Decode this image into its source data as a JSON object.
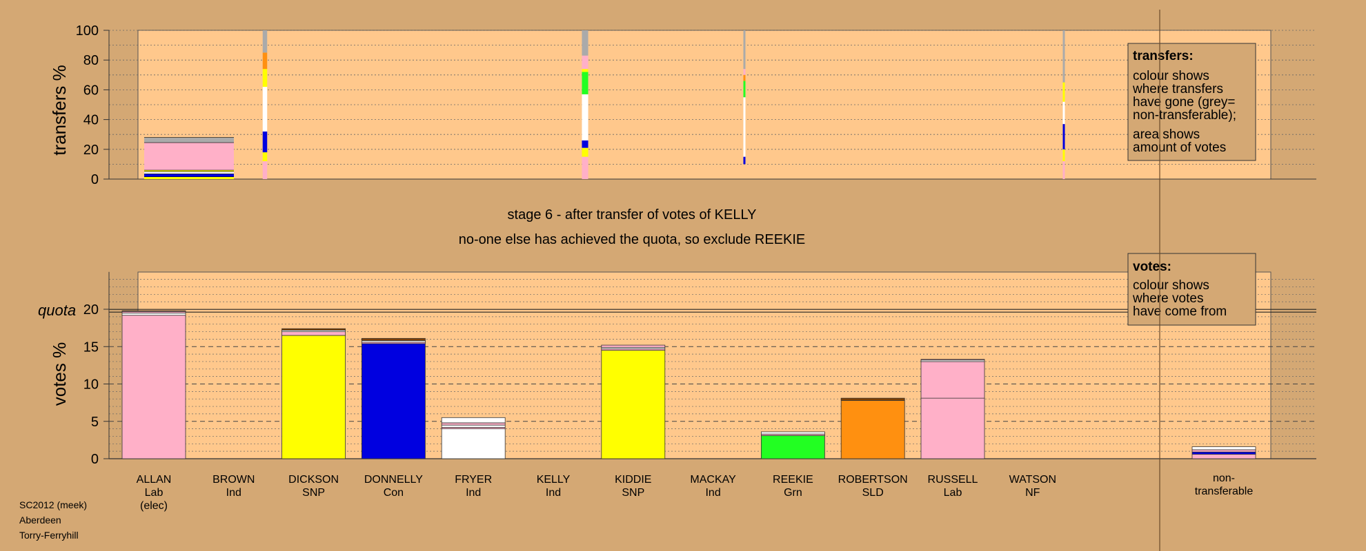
{
  "colors": {
    "background": "#d4a874",
    "plot_background": "#ffc88c",
    "Lab": "#ffb0c8",
    "SNP": "#ffff00",
    "Con": "#0000e0",
    "Ind": "#ffffff",
    "Grn": "#22ff22",
    "SLD": "#ff9010",
    "NF": "#804000",
    "non-transferable": "#aaaaaa"
  },
  "title_lines": [
    "stage 6 - after transfer of votes of KELLY",
    "no-one else has achieved the quota, so exclude REEKIE"
  ],
  "footer": [
    "SC2012 (meek)",
    "Aberdeen",
    "Torry-Ferryhill"
  ],
  "quota_label": "quota",
  "legend_transfers": {
    "heading": "transfers:",
    "para1": [
      "colour shows",
      "where transfers",
      "have gone (grey=",
      "non-transferable);"
    ],
    "para2": [
      "area shows",
      "amount of votes"
    ]
  },
  "legend_votes": {
    "heading": "votes:",
    "para1": [
      "colour shows",
      "where votes",
      "have come from"
    ]
  },
  "chart_data": [
    {
      "type": "bar",
      "name": "transfers",
      "ylabel": "transfers %",
      "ylim": [
        0,
        100
      ],
      "yticks": [
        0,
        20,
        40,
        60,
        80,
        100
      ],
      "grid": "dotted every 10",
      "columns": [
        {
          "candidate": "ALLAN",
          "width_share": 1.0,
          "segments": [
            {
              "party": "SNP",
              "from": 0,
              "to": 1.5
            },
            {
              "party": "Con",
              "from": 1.5,
              "to": 3.5
            },
            {
              "party": "Ind",
              "from": 3.5,
              "to": 5
            },
            {
              "party": "SNP",
              "from": 5,
              "to": 6
            },
            {
              "party": "Lab",
              "from": 6,
              "to": 24.5
            },
            {
              "party": "non-transferable",
              "from": 24.5,
              "to": 28
            }
          ]
        },
        {
          "candidate": "BROWN",
          "width_share": 0.05,
          "segments": [
            {
              "party": "Lab",
              "from": 0,
              "to": 12
            },
            {
              "party": "SNP",
              "from": 12,
              "to": 18
            },
            {
              "party": "Con",
              "from": 18,
              "to": 32
            },
            {
              "party": "Ind",
              "from": 32,
              "to": 62
            },
            {
              "party": "SNP",
              "from": 62,
              "to": 74
            },
            {
              "party": "SLD",
              "from": 74,
              "to": 85
            },
            {
              "party": "non-transferable",
              "from": 85,
              "to": 100
            }
          ]
        },
        {
          "candidate": "KELLY",
          "width_share": 0.07,
          "segments": [
            {
              "party": "Lab",
              "from": 0,
              "to": 15
            },
            {
              "party": "SNP",
              "from": 15,
              "to": 21
            },
            {
              "party": "Con",
              "from": 21,
              "to": 26
            },
            {
              "party": "Ind",
              "from": 26,
              "to": 57
            },
            {
              "party": "Grn",
              "from": 57,
              "to": 72
            },
            {
              "party": "SNP",
              "from": 72,
              "to": 74
            },
            {
              "party": "Lab",
              "from": 74,
              "to": 83
            },
            {
              "party": "non-transferable",
              "from": 83,
              "to": 100
            }
          ]
        },
        {
          "candidate": "MACKAY",
          "width_share": 0.02,
          "segments": [
            {
              "party": "Con",
              "from": 10,
              "to": 15
            },
            {
              "party": "Ind",
              "from": 15,
              "to": 55
            },
            {
              "party": "Grn",
              "from": 55,
              "to": 66
            },
            {
              "party": "SLD",
              "from": 66,
              "to": 70
            },
            {
              "party": "Lab",
              "from": 70,
              "to": 74
            },
            {
              "party": "non-transferable",
              "from": 74,
              "to": 100
            }
          ]
        },
        {
          "candidate": "WATSON",
          "width_share": 0.02,
          "segments": [
            {
              "party": "Lab",
              "from": 0,
              "to": 12
            },
            {
              "party": "SNP",
              "from": 12,
              "to": 20
            },
            {
              "party": "Con",
              "from": 20,
              "to": 37
            },
            {
              "party": "Ind",
              "from": 37,
              "to": 52
            },
            {
              "party": "SNP",
              "from": 52,
              "to": 65
            },
            {
              "party": "non-transferable",
              "from": 65,
              "to": 100
            }
          ]
        }
      ]
    },
    {
      "type": "bar",
      "name": "votes",
      "ylabel": "votes %",
      "ylim": [
        0,
        25
      ],
      "yticks": [
        0,
        5,
        10,
        15,
        20
      ],
      "quota": 19.8,
      "grid": "dashed every 5, dotted every 1",
      "categories": [
        {
          "name": "ALLAN",
          "party": "Lab",
          "note": "(elec)"
        },
        {
          "name": "BROWN",
          "party": "Ind",
          "note": ""
        },
        {
          "name": "DICKSON",
          "party": "SNP",
          "note": ""
        },
        {
          "name": "DONNELLY",
          "party": "Con",
          "note": ""
        },
        {
          "name": "FRYER",
          "party": "Ind",
          "note": ""
        },
        {
          "name": "KELLY",
          "party": "Ind",
          "note": ""
        },
        {
          "name": "KIDDIE",
          "party": "SNP",
          "note": ""
        },
        {
          "name": "MACKAY",
          "party": "Ind",
          "note": ""
        },
        {
          "name": "REEKIE",
          "party": "Grn",
          "note": ""
        },
        {
          "name": "ROBERTSON",
          "party": "SLD",
          "note": ""
        },
        {
          "name": "RUSSELL",
          "party": "Lab",
          "note": ""
        },
        {
          "name": "WATSON",
          "party": "NF",
          "note": ""
        }
      ],
      "bars": [
        {
          "candidate": "ALLAN",
          "segments": [
            {
              "party": "Lab",
              "from": 0,
              "to": 19.2
            },
            {
              "party": "Ind",
              "from": 19.2,
              "to": 19.5
            },
            {
              "party": "Lab",
              "from": 19.5,
              "to": 19.7
            },
            {
              "party": "NF",
              "from": 19.7,
              "to": 19.8
            }
          ]
        },
        {
          "candidate": "BROWN",
          "segments": []
        },
        {
          "candidate": "DICKSON",
          "segments": [
            {
              "party": "SNP",
              "from": 0,
              "to": 16.5
            },
            {
              "party": "Lab",
              "from": 16.5,
              "to": 17.0
            },
            {
              "party": "Ind",
              "from": 17.0,
              "to": 17.2
            },
            {
              "party": "NF",
              "from": 17.2,
              "to": 17.4
            }
          ]
        },
        {
          "candidate": "DONNELLY",
          "segments": [
            {
              "party": "Con",
              "from": 0,
              "to": 15.4
            },
            {
              "party": "Lab",
              "from": 15.4,
              "to": 15.6
            },
            {
              "party": "Ind",
              "from": 15.6,
              "to": 15.8
            },
            {
              "party": "NF",
              "from": 15.8,
              "to": 16.1
            }
          ]
        },
        {
          "candidate": "FRYER",
          "segments": [
            {
              "party": "Ind",
              "from": 0,
              "to": 4.0
            },
            {
              "party": "Lab",
              "from": 4.0,
              "to": 4.2
            },
            {
              "party": "Ind",
              "from": 4.2,
              "to": 4.5
            },
            {
              "party": "Lab",
              "from": 4.5,
              "to": 4.8
            },
            {
              "party": "Ind",
              "from": 4.8,
              "to": 5.5
            }
          ]
        },
        {
          "candidate": "KELLY",
          "segments": []
        },
        {
          "candidate": "KIDDIE",
          "segments": [
            {
              "party": "SNP",
              "from": 0,
              "to": 14.5
            },
            {
              "party": "Lab",
              "from": 14.5,
              "to": 14.7
            },
            {
              "party": "Ind",
              "from": 14.7,
              "to": 14.9
            },
            {
              "party": "Lab",
              "from": 14.9,
              "to": 15.2
            }
          ]
        },
        {
          "candidate": "MACKAY",
          "segments": []
        },
        {
          "candidate": "REEKIE",
          "segments": [
            {
              "party": "Grn",
              "from": 0,
              "to": 3.1
            },
            {
              "party": "Lab",
              "from": 3.1,
              "to": 3.3
            },
            {
              "party": "Ind",
              "from": 3.3,
              "to": 3.6
            }
          ]
        },
        {
          "candidate": "ROBERTSON",
          "segments": [
            {
              "party": "SLD",
              "from": 0,
              "to": 7.8
            },
            {
              "party": "NF",
              "from": 7.8,
              "to": 8.1
            }
          ]
        },
        {
          "candidate": "RUSSELL",
          "segments": [
            {
              "party": "Lab",
              "from": 0,
              "to": 8.1
            },
            {
              "party": "Lab",
              "from": 8.1,
              "to": 13.0
            },
            {
              "party": "Ind",
              "from": 13.0,
              "to": 13.2
            },
            {
              "party": "Lab",
              "from": 13.2,
              "to": 13.3
            }
          ]
        },
        {
          "candidate": "WATSON",
          "segments": []
        }
      ],
      "nontransferable": {
        "label": [
          "non-",
          "transferable"
        ],
        "segments": [
          {
            "party": "Lab",
            "from": 0,
            "to": 0.6
          },
          {
            "party": "Con",
            "from": 0.6,
            "to": 0.9
          },
          {
            "party": "Lab",
            "from": 0.9,
            "to": 1.2
          },
          {
            "party": "Ind",
            "from": 1.2,
            "to": 1.6
          }
        ]
      }
    }
  ]
}
